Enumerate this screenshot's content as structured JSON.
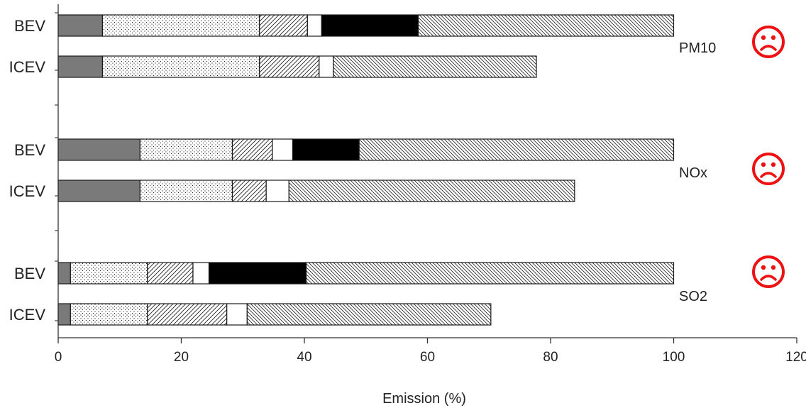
{
  "chart_data": {
    "type": "bar",
    "orientation": "horizontal",
    "stacked": true,
    "xlabel": "Emission (%)",
    "xlim": [
      0,
      120
    ],
    "xticks": [
      0,
      20,
      40,
      60,
      80,
      100,
      120
    ],
    "legend": "none",
    "grid": false,
    "segment_patterns": [
      "solid-gray",
      "dotted",
      "hatch-forward",
      "blank",
      "solid-black",
      "hatch-back"
    ],
    "groups": [
      {
        "label": "PM10",
        "indicator": "frown-face-icon",
        "bars": [
          {
            "label": "BEV",
            "segments": [
              7.2,
              25.5,
              7.8,
              2.3,
              15.7,
              41.5
            ]
          },
          {
            "label": "ICEV",
            "segments": [
              7.2,
              25.5,
              9.7,
              2.3,
              0,
              33.0
            ]
          }
        ]
      },
      {
        "label": "NOx",
        "indicator": "frown-face-icon",
        "bars": [
          {
            "label": "BEV",
            "segments": [
              13.3,
              15.0,
              6.5,
              3.3,
              10.8,
              51.1
            ]
          },
          {
            "label": "ICEV",
            "segments": [
              13.3,
              15.0,
              5.5,
              3.7,
              0,
              46.4
            ]
          }
        ]
      },
      {
        "label": "SO2",
        "indicator": "frown-face-icon",
        "bars": [
          {
            "label": "BEV",
            "segments": [
              2.0,
              12.5,
              7.4,
              2.6,
              15.8,
              59.7
            ]
          },
          {
            "label": "ICEV",
            "segments": [
              2.0,
              12.5,
              12.9,
              3.3,
              0,
              39.6
            ]
          }
        ]
      }
    ]
  },
  "colors": {
    "frown_face": "#ee1111",
    "solid_gray": "#7a7a7a",
    "solid_black": "#000000",
    "outline": "#1a1a1a"
  }
}
